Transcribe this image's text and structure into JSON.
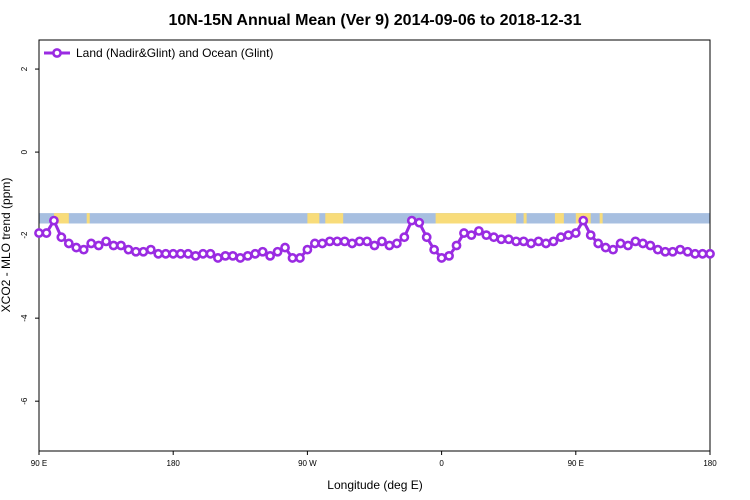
{
  "chart_data": {
    "type": "line",
    "title": "10N-15N Annual Mean (Ver 9)   2014-09-06 to 2018-12-31",
    "xlabel": "Longitude (deg E)",
    "ylabel": "XCO2 - MLO trend (ppm)",
    "x_ticks": [
      {
        "value": 90,
        "label": "90 E"
      },
      {
        "value": 180,
        "label": "180"
      },
      {
        "value": 270,
        "label": "90 W"
      },
      {
        "value": 360,
        "label": "0"
      },
      {
        "value": 450,
        "label": "90 E"
      },
      {
        "value": 540,
        "label": "180"
      }
    ],
    "y_ticks": [
      {
        "value": 2,
        "label": "2"
      },
      {
        "value": 0,
        "label": "0"
      },
      {
        "value": -2,
        "label": "-2"
      },
      {
        "value": -4,
        "label": "-4"
      },
      {
        "value": -6,
        "label": "-6"
      }
    ],
    "xlim": [
      90,
      540
    ],
    "ylim": [
      -7.2,
      2.7
    ],
    "legend": {
      "position": "top-left"
    },
    "series": [
      {
        "name": "Land (Nadir&Glint) and Ocean (Glint)",
        "color": "#9a2be2",
        "marker": "open-circle",
        "x": [
          90,
          95,
          100,
          105,
          110,
          115,
          120,
          125,
          130,
          135,
          140,
          145,
          150,
          155,
          160,
          165,
          170,
          175,
          180,
          185,
          190,
          195,
          200,
          205,
          210,
          215,
          220,
          225,
          230,
          235,
          240,
          245,
          250,
          255,
          260,
          265,
          270,
          275,
          280,
          285,
          290,
          295,
          300,
          305,
          310,
          315,
          320,
          325,
          330,
          335,
          340,
          345,
          350,
          355,
          360,
          365,
          370,
          375,
          380,
          385,
          390,
          395,
          400,
          405,
          410,
          415,
          420,
          425,
          430,
          435,
          440,
          445,
          450,
          455,
          460,
          465,
          470,
          475,
          480,
          485,
          490,
          495,
          500,
          505,
          510,
          515,
          520,
          525,
          530,
          535,
          540
        ],
        "y": [
          -1.95,
          -1.95,
          -1.65,
          -2.05,
          -2.2,
          -2.3,
          -2.35,
          -2.2,
          -2.25,
          -2.15,
          -2.25,
          -2.25,
          -2.35,
          -2.4,
          -2.4,
          -2.35,
          -2.45,
          -2.45,
          -2.45,
          -2.45,
          -2.45,
          -2.5,
          -2.45,
          -2.45,
          -2.55,
          -2.5,
          -2.5,
          -2.55,
          -2.5,
          -2.45,
          -2.4,
          -2.5,
          -2.4,
          -2.3,
          -2.55,
          -2.55,
          -2.35,
          -2.2,
          -2.2,
          -2.15,
          -2.15,
          -2.15,
          -2.2,
          -2.15,
          -2.15,
          -2.25,
          -2.15,
          -2.25,
          -2.2,
          -2.05,
          -1.65,
          -1.7,
          -2.05,
          -2.35,
          -2.55,
          -2.5,
          -2.25,
          -1.95,
          -2.0,
          -1.9,
          -2.0,
          -2.05,
          -2.1,
          -2.1,
          -2.15,
          -2.15,
          -2.2,
          -2.15,
          -2.2,
          -2.15,
          -2.05,
          -2.0,
          -1.95,
          -1.65,
          -2.0,
          -2.2,
          -2.3,
          -2.35,
          -2.2,
          -2.25,
          -2.15,
          -2.2,
          -2.25,
          -2.35,
          -2.4,
          -2.4,
          -2.35,
          -2.4,
          -2.45,
          -2.45,
          -2.45
        ]
      }
    ],
    "background_band": {
      "y_range": [
        -1.72,
        -1.47
      ],
      "ocean_color": "#a7bfe0",
      "land_color": "#f8dc7a",
      "land_spans": [
        [
          100,
          110
        ],
        [
          122,
          124
        ],
        [
          270,
          278
        ],
        [
          282,
          294
        ],
        [
          356,
          410
        ],
        [
          415,
          417
        ],
        [
          436,
          442
        ],
        [
          450,
          460
        ],
        [
          466,
          468
        ]
      ]
    }
  }
}
